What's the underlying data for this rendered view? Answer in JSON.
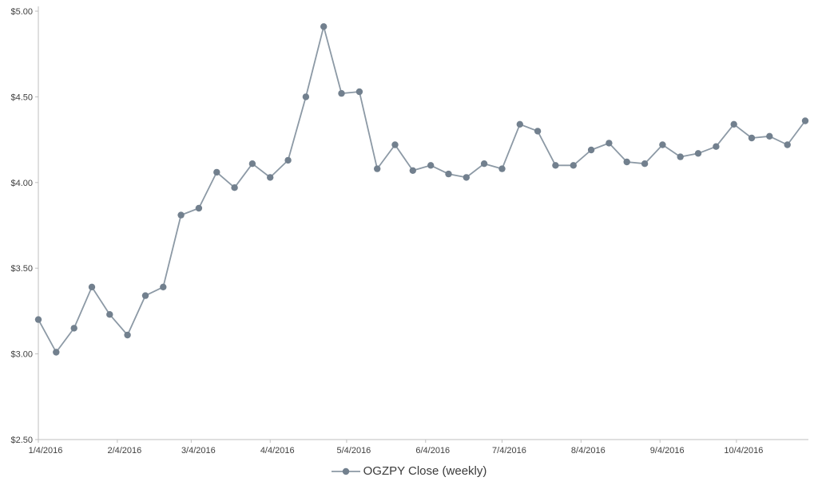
{
  "chart_data": {
    "type": "line",
    "title": "",
    "xlabel": "",
    "ylabel": "",
    "ylim": [
      2.5,
      5.0
    ],
    "grid": false,
    "legend_position": "bottom-center",
    "dates": [
      "1/4/2016",
      "1/11/2016",
      "1/18/2016",
      "1/25/2016",
      "2/1/2016",
      "2/8/2016",
      "2/15/2016",
      "2/22/2016",
      "2/29/2016",
      "3/7/2016",
      "3/14/2016",
      "3/21/2016",
      "3/28/2016",
      "4/4/2016",
      "4/11/2016",
      "4/18/2016",
      "4/25/2016",
      "5/2/2016",
      "5/9/2016",
      "5/16/2016",
      "5/23/2016",
      "5/30/2016",
      "6/6/2016",
      "6/13/2016",
      "6/20/2016",
      "6/27/2016",
      "7/4/2016",
      "7/11/2016",
      "7/18/2016",
      "7/25/2016",
      "8/1/2016",
      "8/8/2016",
      "8/15/2016",
      "8/22/2016",
      "8/29/2016",
      "9/5/2016",
      "9/12/2016",
      "9/19/2016",
      "9/26/2016",
      "10/3/2016",
      "10/10/2016",
      "10/17/2016",
      "10/24/2016",
      "10/31/2016"
    ],
    "series": [
      {
        "name": "OGZPY Close (weekly)",
        "values": [
          3.2,
          3.01,
          3.15,
          3.39,
          3.23,
          3.11,
          3.34,
          3.39,
          3.81,
          3.85,
          4.06,
          3.97,
          4.11,
          4.03,
          4.13,
          4.5,
          4.91,
          4.52,
          4.53,
          4.08,
          4.22,
          4.07,
          4.1,
          4.05,
          4.03,
          4.11,
          4.08,
          4.34,
          4.3,
          4.1,
          4.1,
          4.19,
          4.23,
          4.12,
          4.11,
          4.22,
          4.15,
          4.17,
          4.21,
          4.34,
          4.26,
          4.27,
          4.22,
          4.36
        ]
      }
    ],
    "x_tick_labels": [
      "1/4/2016",
      "2/4/2016",
      "3/4/2016",
      "4/4/2016",
      "5/4/2016",
      "6/4/2016",
      "7/4/2016",
      "8/4/2016",
      "9/4/2016",
      "10/4/2016"
    ],
    "y_ticks": [
      {
        "value": 2.5,
        "label": "$2.50"
      },
      {
        "value": 3.0,
        "label": "$3.00"
      },
      {
        "value": 3.5,
        "label": "$3.50"
      },
      {
        "value": 4.0,
        "label": "$4.00"
      },
      {
        "value": 4.5,
        "label": "$4.50"
      },
      {
        "value": 5.0,
        "label": "$5.00"
      }
    ],
    "style": {
      "line_color": "#8c99a5",
      "marker_color": "#72808e",
      "axis_color": "#bfbfbf",
      "text_color": "#404040"
    }
  }
}
